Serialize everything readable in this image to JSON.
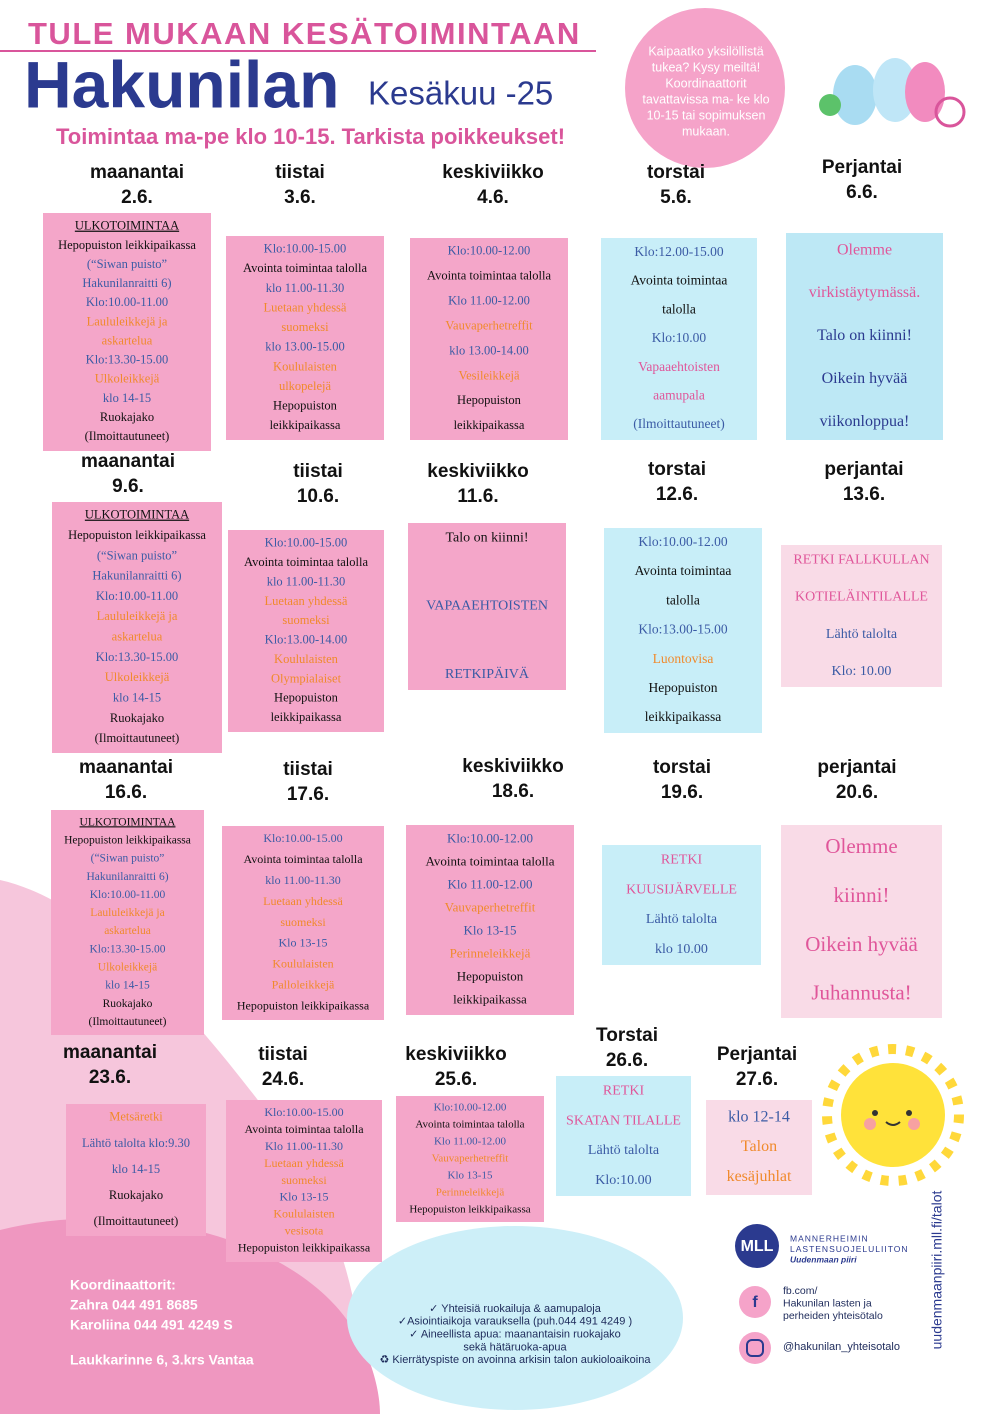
{
  "header": {
    "top_line": "TULE MUKAAN KESÄTOIMINTAAN",
    "title": "Hakunilan",
    "month": "Kesäkuu -25",
    "subtitle": "Toimintaa ma-pe klo 10-15. Tarkista poikkeukset!",
    "bubble": [
      "Kaipaatko yksilöllistä",
      "tukea? Kysy meiltä!",
      "Koordinaattorit",
      "tavattavissa ma- ke klo",
      "10-15 tai sopimuksen",
      "mukaan."
    ]
  },
  "days": [
    {
      "weekday": "maanantai",
      "date": "2.6.",
      "lines": [
        [
          "ULKOTOIMINTAA",
          "#111"
        ],
        [
          "Hepopuiston leikkipaikassa",
          "#111"
        ],
        [
          "(“Siwan puisto”",
          "#3b5ba5"
        ],
        [
          "Hakunilanraitti 6)",
          "#3b5ba5"
        ],
        [
          "Klo:10.00-11.00",
          "#3b5ba5"
        ],
        [
          "Laululeikkejä ja",
          "#f08a2c"
        ],
        [
          "askartelua",
          "#f08a2c"
        ],
        [
          "Klo:13.30-15.00",
          "#3b5ba5"
        ],
        [
          "Ulkoleikkejä",
          "#f08a2c"
        ],
        [
          "klo 14-15",
          "#3b5ba5"
        ],
        [
          "Ruokajako",
          "#111"
        ],
        [
          "(Ilmoittautuneet)",
          "#111"
        ]
      ]
    },
    {
      "weekday": "tiistai",
      "date": "3.6.",
      "lines": [
        [
          "Klo:10.00-15.00",
          "#3b5ba5"
        ],
        [
          "Avointa toimintaa talolla",
          "#111"
        ],
        [
          "klo 11.00-11.30",
          "#3b5ba5"
        ],
        [
          "Luetaan yhdessä",
          "#f08a2c"
        ],
        [
          "suomeksi",
          "#f08a2c"
        ],
        [
          "klo 13.00-15.00",
          "#3b5ba5"
        ],
        [
          "Koululaisten",
          "#f08a2c"
        ],
        [
          "ulkopelejä",
          "#f08a2c"
        ],
        [
          "Hepopuiston",
          "#111"
        ],
        [
          "leikkipaikassa",
          "#111"
        ]
      ]
    },
    {
      "weekday": "keskiviikko",
      "date": "4.6.",
      "lines": [
        [
          "Klo:10.00-12.00",
          "#3b5ba5"
        ],
        [
          "Avointa toimintaa talolla",
          "#111"
        ],
        [
          "Klo 11.00-12.00",
          "#3b5ba5"
        ],
        [
          "Vauvaperhetreffit",
          "#f08a2c"
        ],
        [
          "klo 13.00-14.00",
          "#3b5ba5"
        ],
        [
          "Vesileikkejä",
          "#f08a2c"
        ],
        [
          "Hepopuiston",
          "#111"
        ],
        [
          "leikkipaikassa",
          "#111"
        ]
      ]
    },
    {
      "weekday": "torstai",
      "date": "5.6.",
      "lines": [
        [
          "Klo:12.00-15.00",
          "#3b5ba5"
        ],
        [
          "Avointa toimintaa",
          "#111"
        ],
        [
          "talolla",
          "#111"
        ],
        [
          "Klo:10.00",
          "#3b5ba5"
        ],
        [
          "Vapaaehtoisten",
          "#e0569a"
        ],
        [
          "aamupala",
          "#e0569a"
        ],
        [
          "(Ilmoittautuneet)",
          "#3b5ba5"
        ]
      ]
    },
    {
      "weekday": "Perjantai",
      "date": "6.6.",
      "lines": [
        [
          "Olemme",
          "#e0569a"
        ],
        [
          "virkistäytymässä.",
          "#e0569a"
        ],
        [
          "Talo on kiinni!",
          "#2b3a8f"
        ],
        [
          "Oikein hyvää",
          "#2b3a8f"
        ],
        [
          "viikonloppua!",
          "#2b3a8f"
        ]
      ]
    },
    {
      "weekday": "maanantai",
      "date": "9.6.",
      "lines": [
        [
          "ULKOTOIMINTAA",
          "#111"
        ],
        [
          "Hepopuiston leikkipaikassa",
          "#111"
        ],
        [
          "(“Siwan puisto”",
          "#3b5ba5"
        ],
        [
          "Hakunilanraitti 6)",
          "#3b5ba5"
        ],
        [
          "Klo:10.00-11.00",
          "#3b5ba5"
        ],
        [
          "Laululeikkejä ja",
          "#f08a2c"
        ],
        [
          "askartelua",
          "#f08a2c"
        ],
        [
          "Klo:13.30-15.00",
          "#3b5ba5"
        ],
        [
          "Ulkoleikkejä",
          "#f08a2c"
        ],
        [
          "klo 14-15",
          "#3b5ba5"
        ],
        [
          "Ruokajako",
          "#111"
        ],
        [
          "(Ilmoittautuneet)",
          "#111"
        ]
      ]
    },
    {
      "weekday": "tiistai",
      "date": "10.6.",
      "lines": [
        [
          "Klo:10.00-15.00",
          "#3b5ba5"
        ],
        [
          "Avointa toimintaa talolla",
          "#111"
        ],
        [
          "klo 11.00-11.30",
          "#3b5ba5"
        ],
        [
          "Luetaan yhdessä",
          "#f08a2c"
        ],
        [
          "suomeksi",
          "#f08a2c"
        ],
        [
          "Klo:13.00-14.00",
          "#3b5ba5"
        ],
        [
          "Koululaisten",
          "#f08a2c"
        ],
        [
          "Olympialaiset",
          "#f08a2c"
        ],
        [
          "Hepopuiston",
          "#111"
        ],
        [
          "leikkipaikassa",
          "#111"
        ]
      ]
    },
    {
      "weekday": "keskiviikko",
      "date": "11.6.",
      "lines": [
        [
          "Talo on kiinni!",
          "#111"
        ],
        [
          "VAPAAEHTOISTEN",
          "#3b5ba5"
        ],
        [
          "RETKIPÄIVÄ",
          "#3b5ba5"
        ]
      ]
    },
    {
      "weekday": "torstai",
      "date": "12.6.",
      "lines": [
        [
          "Klo:10.00-12.00",
          "#3b5ba5"
        ],
        [
          "Avointa toimintaa",
          "#111"
        ],
        [
          "talolla",
          "#111"
        ],
        [
          "Klo:13.00-15.00",
          "#3b5ba5"
        ],
        [
          "Luontovisa",
          "#f08a2c"
        ],
        [
          "Hepopuiston",
          "#111"
        ],
        [
          "leikkipaikassa",
          "#111"
        ]
      ]
    },
    {
      "weekday": "perjantai",
      "date": "13.6.",
      "lines": [
        [
          "RETKI FALLKULLAN",
          "#e0569a"
        ],
        [
          "KOTIELÄINTILALLE",
          "#e0569a"
        ],
        [
          "Lähtö talolta",
          "#3b5ba5"
        ],
        [
          "Klo: 10.00",
          "#3b5ba5"
        ]
      ]
    },
    {
      "weekday": "maanantai",
      "date": "16.6.",
      "lines": [
        [
          "ULKOTOIMINTAA",
          "#111"
        ],
        [
          "Hepopuiston leikkipaikassa",
          "#111"
        ],
        [
          "(“Siwan puisto”",
          "#3b5ba5"
        ],
        [
          "Hakunilanraitti 6)",
          "#3b5ba5"
        ],
        [
          "Klo:10.00-11.00",
          "#3b5ba5"
        ],
        [
          "Laululeikkejä ja",
          "#f08a2c"
        ],
        [
          "askartelua",
          "#f08a2c"
        ],
        [
          "Klo:13.30-15.00",
          "#3b5ba5"
        ],
        [
          "Ulkoleikkejä",
          "#f08a2c"
        ],
        [
          "klo 14-15",
          "#3b5ba5"
        ],
        [
          "Ruokajako",
          "#111"
        ],
        [
          "(Ilmoittautuneet)",
          "#111"
        ]
      ]
    },
    {
      "weekday": "tiistai",
      "date": "17.6.",
      "lines": [
        [
          "Klo:10.00-15.00",
          "#3b5ba5"
        ],
        [
          "Avointa toimintaa talolla",
          "#111"
        ],
        [
          "klo 11.00-11.30",
          "#3b5ba5"
        ],
        [
          "Luetaan yhdessä",
          "#f08a2c"
        ],
        [
          "suomeksi",
          "#f08a2c"
        ],
        [
          "Klo 13-15",
          "#3b5ba5"
        ],
        [
          "Koululaisten",
          "#f08a2c"
        ],
        [
          "Palloleikkejä",
          "#f08a2c"
        ],
        [
          "Hepopuiston leikkipaikassa",
          "#111"
        ]
      ]
    },
    {
      "weekday": "keskiviikko",
      "date": "18.6.",
      "lines": [
        [
          "Klo:10.00-12.00",
          "#3b5ba5"
        ],
        [
          "Avointa toimintaa talolla",
          "#111"
        ],
        [
          "Klo 11.00-12.00",
          "#3b5ba5"
        ],
        [
          "Vauvaperhetreffit",
          "#f08a2c"
        ],
        [
          "Klo 13-15",
          "#3b5ba5"
        ],
        [
          "Perinneleikkejä",
          "#f08a2c"
        ],
        [
          "Hepopuiston",
          "#111"
        ],
        [
          "leikkipaikassa",
          "#111"
        ]
      ]
    },
    {
      "weekday": "torstai",
      "date": "19.6.",
      "lines": [
        [
          "RETKI",
          "#e0569a"
        ],
        [
          "KUUSIJÄRVELLE",
          "#e0569a"
        ],
        [
          "Lähtö talolta",
          "#3b5ba5"
        ],
        [
          "klo 10.00",
          "#3b5ba5"
        ]
      ]
    },
    {
      "weekday": "perjantai",
      "date": "20.6.",
      "lines": [
        [
          "Olemme",
          "#e0569a"
        ],
        [
          "kiinni!",
          "#e0569a"
        ],
        [
          "Oikein hyvää",
          "#e0569a"
        ],
        [
          "Juhannusta!",
          "#e0569a"
        ]
      ]
    },
    {
      "weekday": "maanantai",
      "date": "23.6.",
      "lines": [
        [
          "Metsäretki",
          "#f08a2c"
        ],
        [
          "Lähtö talolta klo:9.30",
          "#3b5ba5"
        ],
        [
          "klo 14-15",
          "#3b5ba5"
        ],
        [
          "Ruokajako",
          "#111"
        ],
        [
          "(Ilmoittautuneet)",
          "#111"
        ]
      ]
    },
    {
      "weekday": "tiistai",
      "date": "24.6.",
      "lines": [
        [
          "Klo:10.00-15.00",
          "#3b5ba5"
        ],
        [
          "Avointa toimintaa talolla",
          "#111"
        ],
        [
          "Klo 11.00-11.30",
          "#3b5ba5"
        ],
        [
          "Luetaan yhdessä",
          "#f08a2c"
        ],
        [
          "suomeksi",
          "#f08a2c"
        ],
        [
          "Klo 13-15",
          "#3b5ba5"
        ],
        [
          "Koululaisten",
          "#f08a2c"
        ],
        [
          "vesisota",
          "#f08a2c"
        ],
        [
          "Hepopuiston leikkipaikassa",
          "#111"
        ]
      ]
    },
    {
      "weekday": "keskiviikko",
      "date": "25.6.",
      "lines": [
        [
          "Klo:10.00-12.00",
          "#3b5ba5"
        ],
        [
          "Avointa toimintaa talolla",
          "#111"
        ],
        [
          "Klo 11.00-12.00",
          "#3b5ba5"
        ],
        [
          "Vauvaperhetreffit",
          "#f08a2c"
        ],
        [
          "Klo 13-15",
          "#3b5ba5"
        ],
        [
          "Perinneleikkejä",
          "#f08a2c"
        ],
        [
          "Hepopuiston leikkipaikassa",
          "#111"
        ]
      ]
    },
    {
      "weekday": "Torstai",
      "date": "26.6.",
      "lines": [
        [
          "RETKI",
          "#e0569a"
        ],
        [
          "SKATAN TILALLE",
          "#e0569a"
        ],
        [
          "Lähtö talolta",
          "#3b5ba5"
        ],
        [
          "Klo:10.00",
          "#3b5ba5"
        ]
      ]
    },
    {
      "weekday": "Perjantai",
      "date": "27.6.",
      "lines": [
        [
          "klo 12-14",
          "#3b5ba5"
        ],
        [
          "Talon",
          "#f08a2c"
        ],
        [
          "kesäjuhlat",
          "#f08a2c"
        ]
      ]
    }
  ],
  "footer": {
    "coordinators": [
      "Koordinaattorit:",
      "Zahra 044 491 8685",
      "Karoliina 044 491 4249 S"
    ],
    "address": "Laukkarinne 6, 3.krs Vantaa",
    "info": [
      "✓ Yhteisiä ruokailuja & aamupaloja",
      "✓Asiointiaikoja varauksella (puh.044 491 4249 )",
      "✓ Aineellista apua: maanantaisin ruokajako",
      "sekä hätäruoka-apua",
      "♻ Kierrätyspiste on avoinna arkisin talon aukioloaikoina"
    ],
    "logo": {
      "mark": "MLL",
      "lines": [
        "MANNERHEIMIN",
        "LASTENSUOJELULIITON",
        "Uudenmaan piiri"
      ]
    },
    "facebook": [
      "fb.com/",
      "Hakunilan lasten ja",
      "perheiden yhteisötalo"
    ],
    "instagram": "@hakunilan_yhteisotalo",
    "website": "uudenmaanpiiri.mll.fi/talot"
  }
}
